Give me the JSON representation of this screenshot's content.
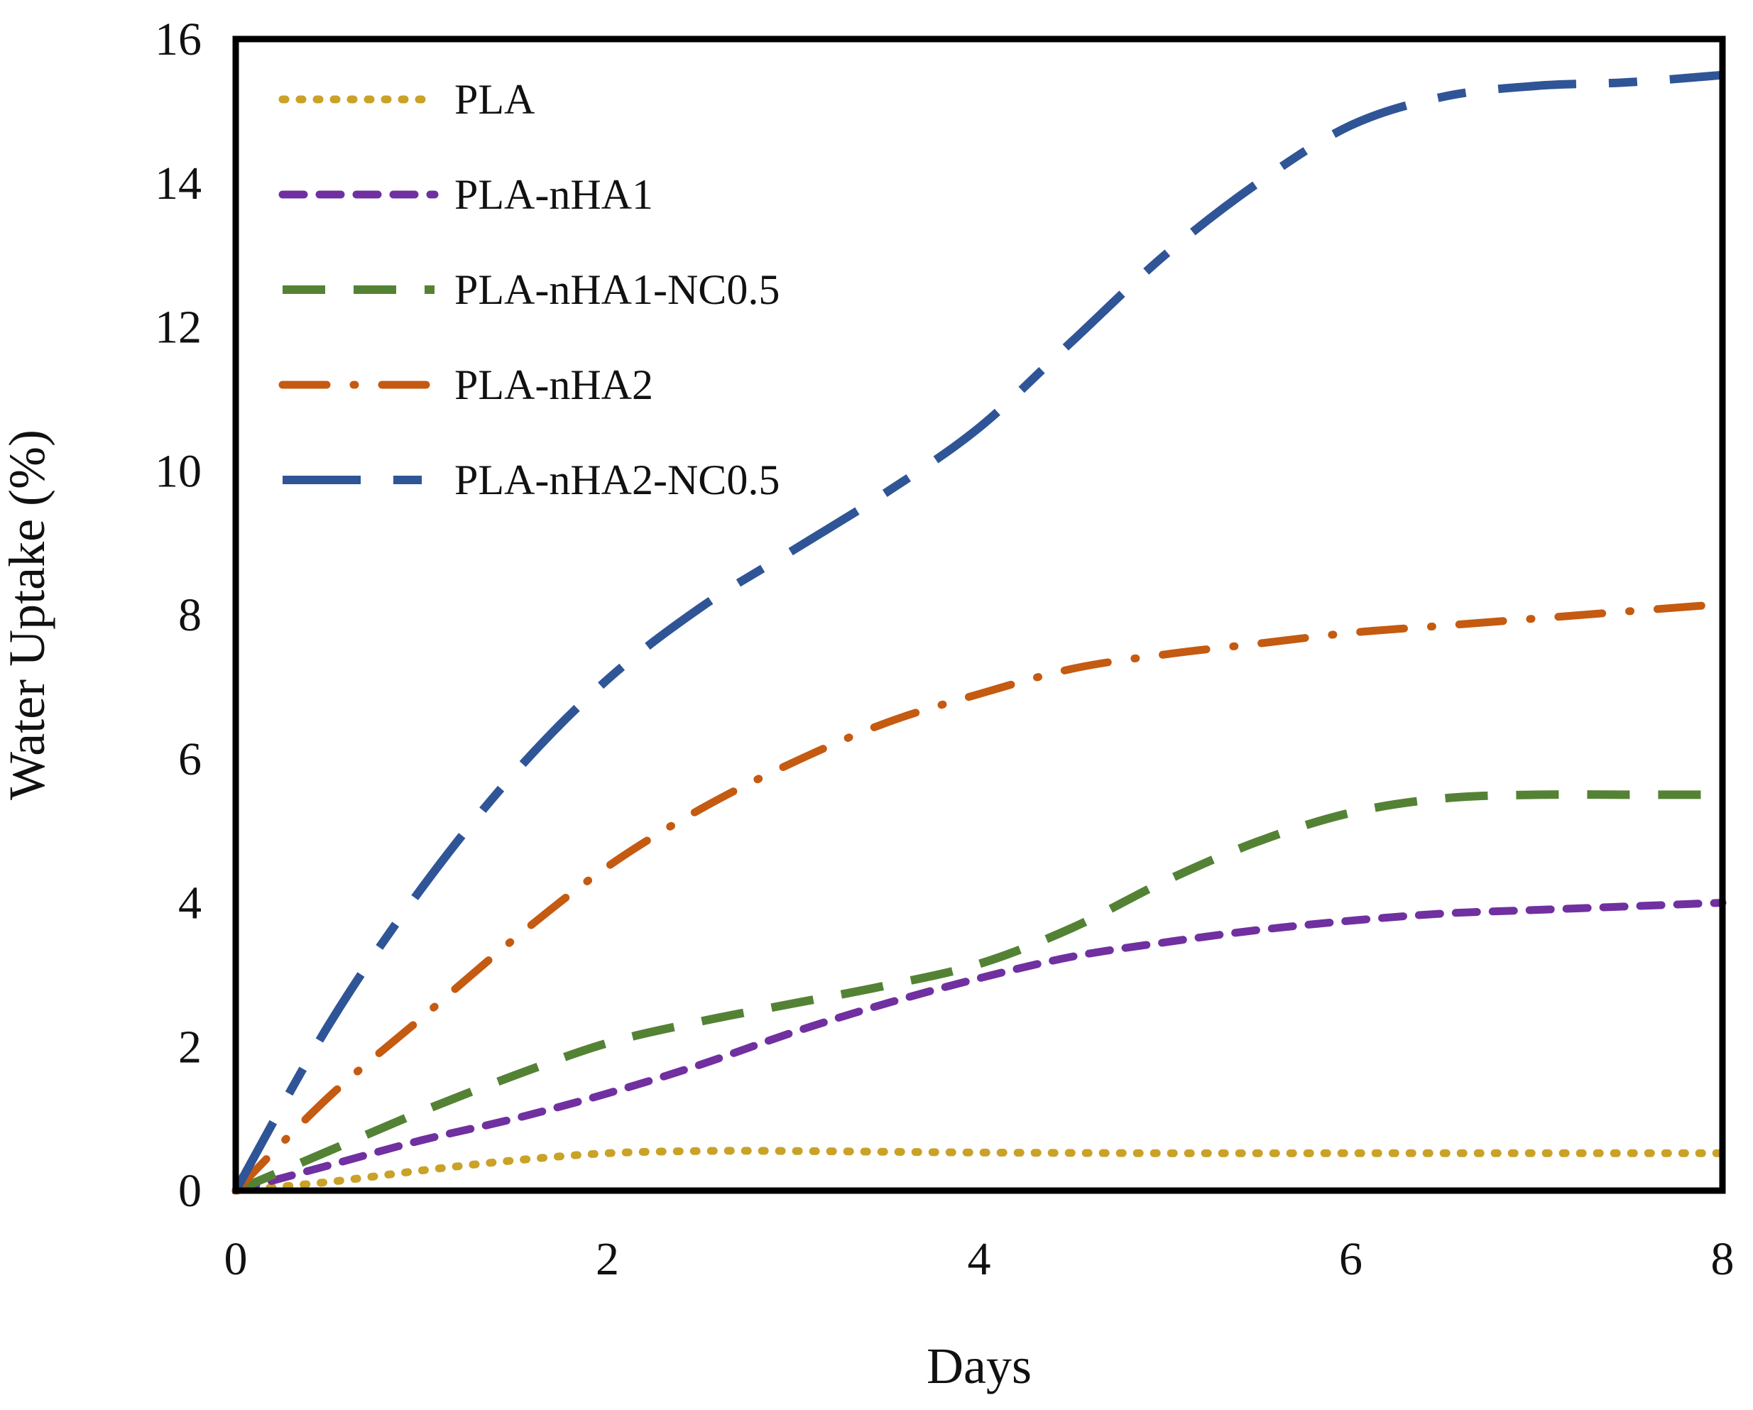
{
  "chart_data": {
    "type": "line",
    "title": "",
    "xlabel": "Days",
    "ylabel": "Water Uptake (%)",
    "xlim": [
      0,
      8
    ],
    "ylim": [
      0,
      16
    ],
    "xticks": [
      0,
      2,
      4,
      6,
      8
    ],
    "yticks": [
      0,
      2,
      4,
      6,
      8,
      10,
      12,
      14,
      16
    ],
    "grid": false,
    "legend_position": "top-left",
    "series": [
      {
        "name": "PLA",
        "color": "#C9A227",
        "dash": "dotted",
        "points": [
          [
            0,
            0
          ],
          [
            0.5,
            0.12
          ],
          [
            1,
            0.28
          ],
          [
            1.5,
            0.42
          ],
          [
            2,
            0.52
          ],
          [
            2.5,
            0.55
          ],
          [
            3,
            0.55
          ],
          [
            4,
            0.53
          ],
          [
            5,
            0.52
          ],
          [
            6,
            0.52
          ],
          [
            7,
            0.52
          ],
          [
            8,
            0.52
          ]
        ]
      },
      {
        "name": "PLA-nHA1",
        "color": "#7030A0",
        "dash": "short-dash",
        "points": [
          [
            0,
            0
          ],
          [
            0.5,
            0.35
          ],
          [
            1,
            0.7
          ],
          [
            1.5,
            1.0
          ],
          [
            2,
            1.35
          ],
          [
            2.5,
            1.75
          ],
          [
            3,
            2.2
          ],
          [
            3.5,
            2.6
          ],
          [
            4,
            2.95
          ],
          [
            4.5,
            3.25
          ],
          [
            5,
            3.45
          ],
          [
            5.5,
            3.62
          ],
          [
            6,
            3.75
          ],
          [
            6.5,
            3.85
          ],
          [
            7,
            3.9
          ],
          [
            7.5,
            3.95
          ],
          [
            8,
            4.0
          ]
        ]
      },
      {
        "name": "PLA-nHA1-NC0.5",
        "color": "#548235",
        "dash": "long-dash",
        "points": [
          [
            0,
            0
          ],
          [
            0.5,
            0.55
          ],
          [
            1,
            1.1
          ],
          [
            1.5,
            1.6
          ],
          [
            2,
            2.05
          ],
          [
            2.5,
            2.35
          ],
          [
            3,
            2.6
          ],
          [
            3.5,
            2.85
          ],
          [
            4,
            3.15
          ],
          [
            4.5,
            3.65
          ],
          [
            5,
            4.3
          ],
          [
            5.5,
            4.85
          ],
          [
            6,
            5.25
          ],
          [
            6.5,
            5.45
          ],
          [
            7,
            5.5
          ],
          [
            7.5,
            5.5
          ],
          [
            8,
            5.5
          ]
        ]
      },
      {
        "name": "PLA-nHA2",
        "color": "#C55A11",
        "dash": "dash-dot",
        "points": [
          [
            0,
            0
          ],
          [
            0.5,
            1.3
          ],
          [
            1,
            2.4
          ],
          [
            1.5,
            3.5
          ],
          [
            2,
            4.5
          ],
          [
            2.5,
            5.3
          ],
          [
            3,
            5.95
          ],
          [
            3.5,
            6.5
          ],
          [
            4,
            6.9
          ],
          [
            4.5,
            7.25
          ],
          [
            5,
            7.45
          ],
          [
            5.5,
            7.6
          ],
          [
            6,
            7.75
          ],
          [
            6.5,
            7.85
          ],
          [
            7,
            7.95
          ],
          [
            7.5,
            8.05
          ],
          [
            8,
            8.15
          ]
        ]
      },
      {
        "name": "PLA-nHA2-NC0.5",
        "color": "#2F5597",
        "dash": "long-short-dash",
        "points": [
          [
            0,
            0
          ],
          [
            0.5,
            2.3
          ],
          [
            1,
            4.2
          ],
          [
            1.5,
            5.8
          ],
          [
            2,
            7.1
          ],
          [
            2.5,
            8.1
          ],
          [
            3,
            8.9
          ],
          [
            3.5,
            9.7
          ],
          [
            4,
            10.6
          ],
          [
            4.5,
            11.8
          ],
          [
            5,
            13.0
          ],
          [
            5.5,
            14.0
          ],
          [
            6,
            14.8
          ],
          [
            6.5,
            15.2
          ],
          [
            7,
            15.35
          ],
          [
            7.5,
            15.4
          ],
          [
            8,
            15.5
          ]
        ]
      }
    ]
  }
}
